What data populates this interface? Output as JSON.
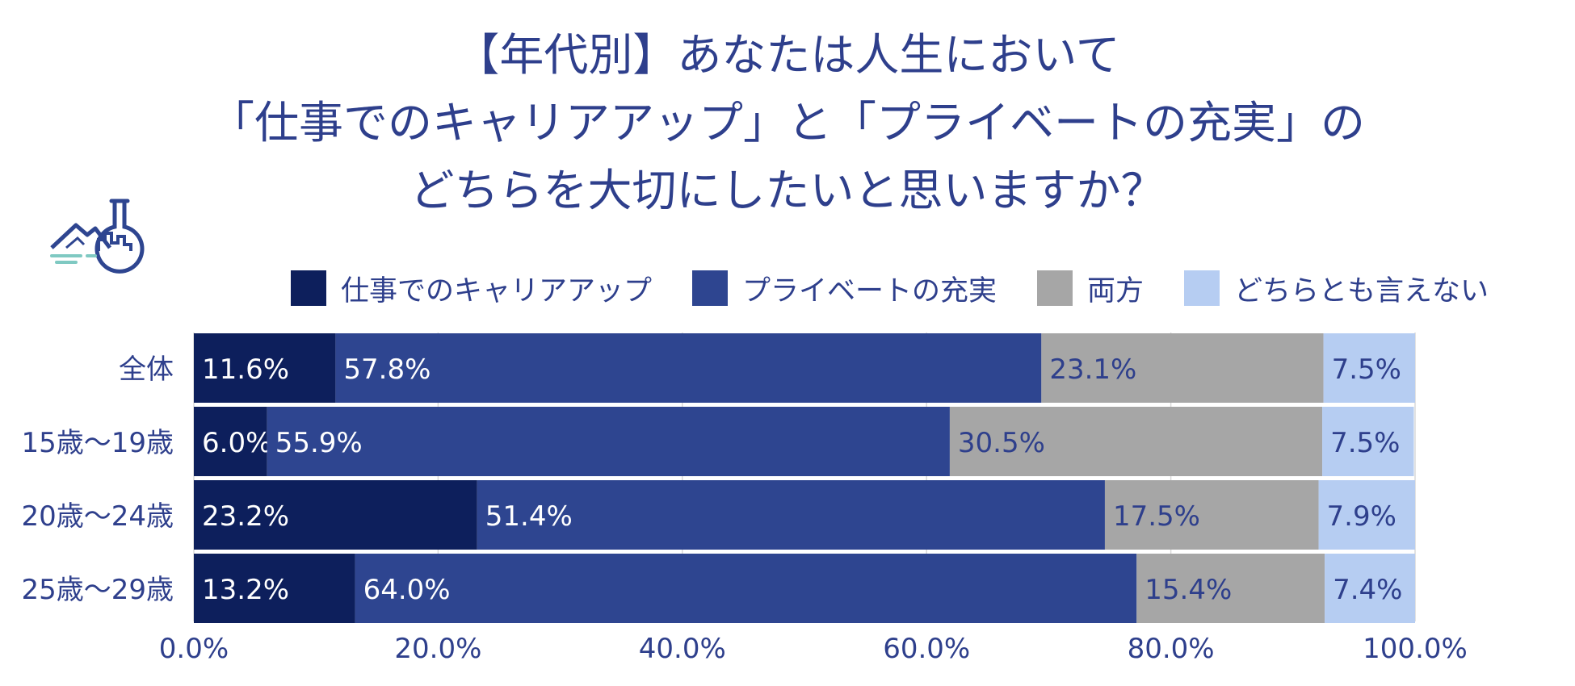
{
  "title_lines": [
    "【年代別】あなたは人生において",
    "「仕事でのキャリアアップ」と「プライベートの充実」の",
    "どちらを大切にしたいと思いますか？"
  ],
  "logo_icon": "flask-landscape-icon",
  "chart_data": {
    "type": "bar",
    "orientation": "horizontal",
    "stacked": true,
    "title": "【年代別】あなたは人生において「仕事でのキャリアアップ」と「プライベートの充実」のどちらを大切にしたいと思いますか？",
    "categories": [
      "全体",
      "15歳～19歳",
      "20歳～24歳",
      "25歳～29歳"
    ],
    "series": [
      {
        "name": "仕事でのキャリアアップ",
        "color": "#0d1f5c",
        "label_color": "#ffffff",
        "values": [
          11.6,
          6.0,
          23.2,
          13.2
        ],
        "labels": [
          "11.6%",
          "6.0%",
          "23.2%",
          "13.2%"
        ]
      },
      {
        "name": "プライベートの充実",
        "color": "#2e4590",
        "label_color": "#ffffff",
        "values": [
          57.8,
          55.9,
          51.4,
          64.0
        ],
        "labels": [
          "57.8%",
          "55.9%",
          "51.4%",
          "64.0%"
        ]
      },
      {
        "name": "両方",
        "color": "#a6a6a6",
        "label_color": "#2e3f8c",
        "values": [
          23.1,
          30.5,
          17.5,
          15.4
        ],
        "labels": [
          "23.1%",
          "30.5%",
          "17.5%",
          "15.4%"
        ]
      },
      {
        "name": "どちらとも言えない",
        "color": "#b6cdf2",
        "label_color": "#2e3f8c",
        "values": [
          7.5,
          7.5,
          7.9,
          7.4
        ],
        "labels": [
          "7.5%",
          "7.5%",
          "7.9%",
          "7.4%"
        ]
      }
    ],
    "x_ticks": [
      0,
      20,
      40,
      60,
      80,
      100
    ],
    "x_tick_labels": [
      "0.0%",
      "20.0%",
      "40.0%",
      "60.0%",
      "80.0%",
      "100.0%"
    ],
    "xlim": [
      0,
      100
    ],
    "xlabel": "",
    "ylabel": "",
    "grid": true,
    "legend_position": "top"
  }
}
